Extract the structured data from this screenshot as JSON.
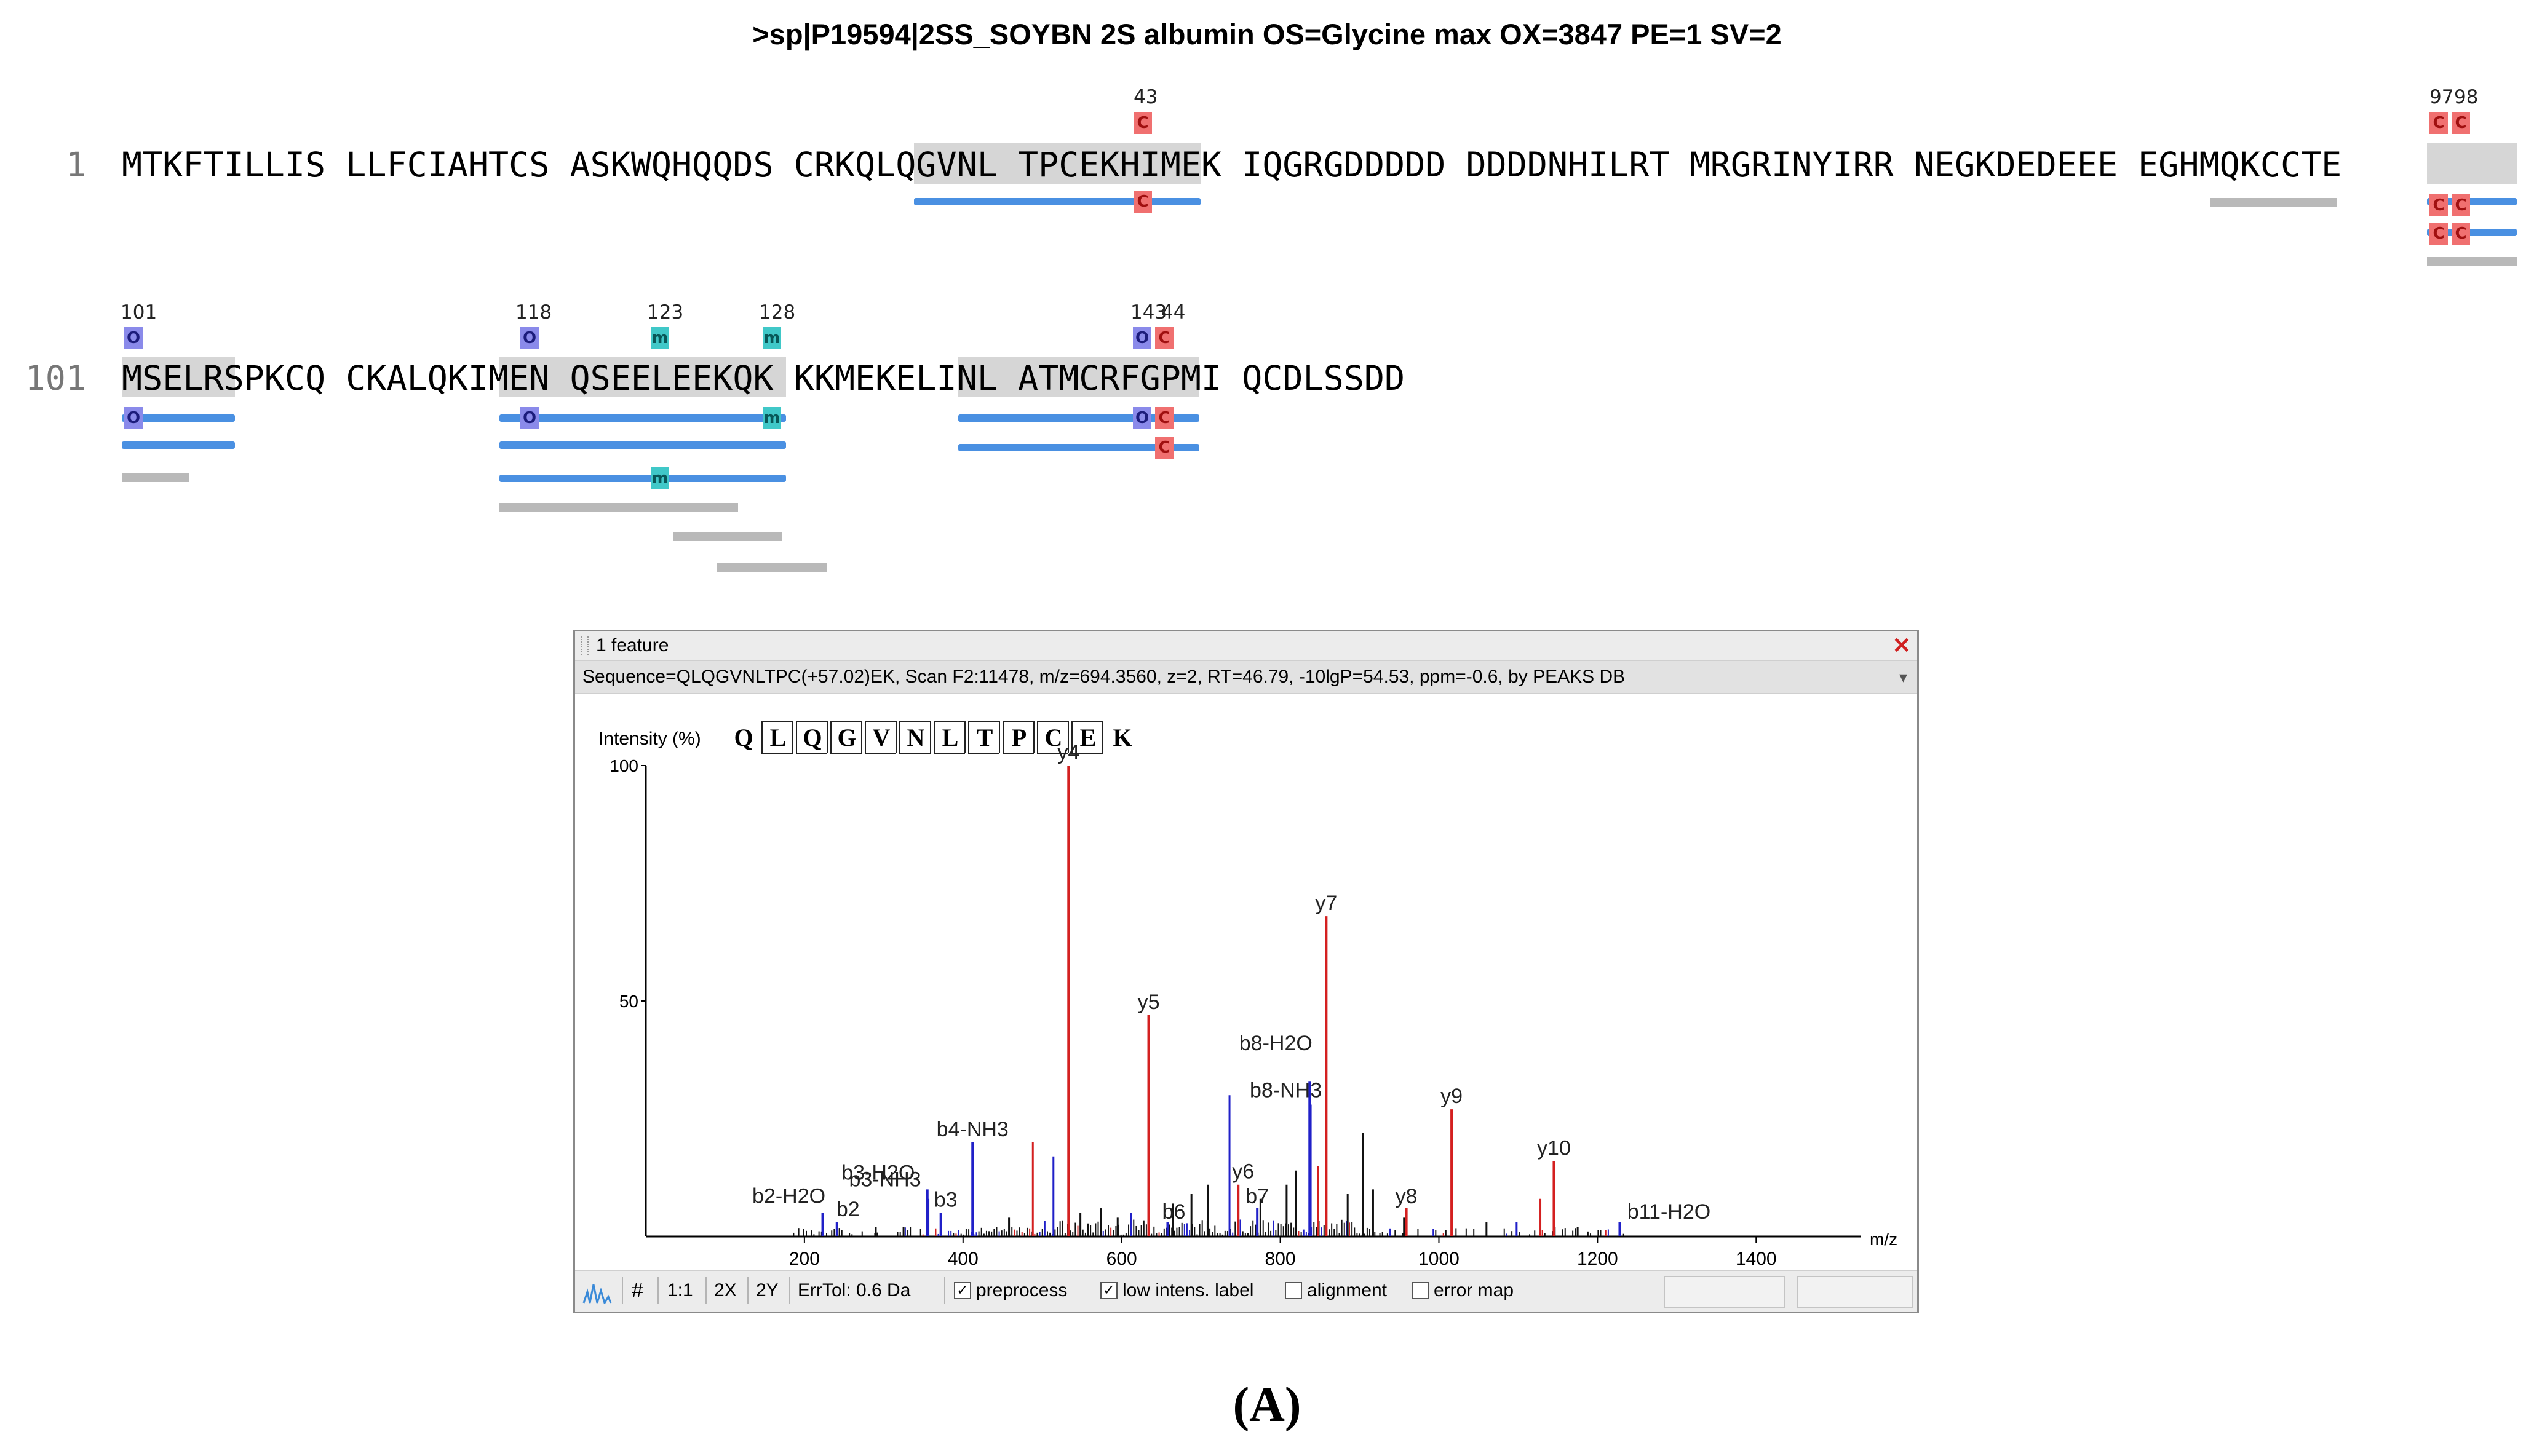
{
  "header": {
    "title": ">sp|P19594|2SS_SOYBN 2S albumin OS=Glycine max OX=3847 PE=1 SV=2"
  },
  "sequence": {
    "line1": {
      "num": "1",
      "text": "MTKFTILLIS LLFCIAHTCS ASKWQHQQDS CRKQLQGVNL TPCEKHIMEK IQGRGDDDDD DDDDNHILRT MRGRINYIRR NEGKDEDEEE EGHMQKCCTE"
    },
    "line2": {
      "num": "101",
      "text": "MSELRSPKCQ CKALQKIMEN QSEELEEKQK KKMEKELINL ATMCRFGPMI QCDLSSDD"
    },
    "positions": {
      "p43": "43",
      "p97": "97",
      "p98": "98",
      "p101": "101",
      "p118": "118",
      "p123": "123",
      "p128": "128",
      "p143": "143",
      "p144": "44"
    },
    "mod_letters": {
      "c": "C",
      "o": "O",
      "m": "m"
    }
  },
  "panel": {
    "title": "1 feature",
    "info": "Sequence=QLQGVNLTPC(+57.02)EK, Scan F2:11478, m/z=694.3560, z=2, RT=46.79, -10lgP=54.53, ppm=-0.6, by PEAKS DB",
    "ylabel": "Intensity (%)",
    "peptide": [
      "Q",
      "L",
      "Q",
      "G",
      "V",
      "N",
      "L",
      "T",
      "P",
      "C",
      "E",
      "K"
    ],
    "xunit": "m/z",
    "footer": {
      "onetoone": "1:1",
      "twox": "2X",
      "twoy": "2Y",
      "hash": "#",
      "errtol": "ErrTol: 0.6 Da",
      "preprocess": "preprocess",
      "lowintens": "low intens. label",
      "alignment": "alignment",
      "errormap": "error map"
    }
  },
  "chart_data": {
    "type": "bar",
    "title": "",
    "xlabel": "m/z",
    "ylabel": "Intensity (%)",
    "xlim": [
      0,
      1520
    ],
    "ylim": [
      0,
      100
    ],
    "xticks": [
      200,
      400,
      600,
      800,
      1000,
      1200,
      1400
    ],
    "yticks": [
      50,
      100
    ],
    "colors": {
      "y": "#d42020",
      "b": "#2020c8",
      "other": "#111111"
    },
    "labeled_peaks": [
      {
        "label": "y4",
        "mz": 533,
        "intensity": 100,
        "ion": "y"
      },
      {
        "label": "y7",
        "mz": 858,
        "intensity": 68,
        "ion": "y"
      },
      {
        "label": "y5",
        "mz": 634,
        "intensity": 47,
        "ion": "y"
      },
      {
        "label": "b8-H2O",
        "mz": 837,
        "intensity": 33,
        "ion": "b"
      },
      {
        "label": "b8-NH3",
        "mz": 838,
        "intensity": 28,
        "ion": "b"
      },
      {
        "label": "y9",
        "mz": 1016,
        "intensity": 27,
        "ion": "y"
      },
      {
        "label": "b4-NH3",
        "mz": 412,
        "intensity": 20,
        "ion": "b"
      },
      {
        "label": "y10",
        "mz": 1145,
        "intensity": 16,
        "ion": "y"
      },
      {
        "label": "b3-H2O",
        "mz": 355,
        "intensity": 10,
        "ion": "b"
      },
      {
        "label": "y6",
        "mz": 747,
        "intensity": 11,
        "ion": "y"
      },
      {
        "label": "b3-NH3",
        "mz": 356,
        "intensity": 8,
        "ion": "b"
      },
      {
        "label": "b7",
        "mz": 771,
        "intensity": 6,
        "ion": "b"
      },
      {
        "label": "y8",
        "mz": 959,
        "intensity": 6,
        "ion": "y"
      },
      {
        "label": "b2-H2O",
        "mz": 223,
        "intensity": 5,
        "ion": "b"
      },
      {
        "label": "b3",
        "mz": 372,
        "intensity": 5,
        "ion": "b"
      },
      {
        "label": "b2",
        "mz": 241,
        "intensity": 3,
        "ion": "b"
      },
      {
        "label": "b6",
        "mz": 658,
        "intensity": 3,
        "ion": "b"
      },
      {
        "label": "b11-H2O",
        "mz": 1228,
        "intensity": 3,
        "ion": "b"
      }
    ],
    "unlabeled_peaks": [
      {
        "mz": 736,
        "intensity": 30,
        "ion": "b"
      },
      {
        "mz": 488,
        "intensity": 20,
        "ion": "y"
      },
      {
        "mz": 514,
        "intensity": 17,
        "ion": "b"
      },
      {
        "mz": 904,
        "intensity": 22,
        "ion": "other"
      },
      {
        "mz": 848,
        "intensity": 15,
        "ion": "y"
      },
      {
        "mz": 820,
        "intensity": 14,
        "ion": "other"
      },
      {
        "mz": 808,
        "intensity": 11,
        "ion": "other"
      },
      {
        "mz": 885,
        "intensity": 9,
        "ion": "other"
      },
      {
        "mz": 917,
        "intensity": 10,
        "ion": "other"
      },
      {
        "mz": 1128,
        "intensity": 8,
        "ion": "y"
      },
      {
        "mz": 688,
        "intensity": 9,
        "ion": "other"
      },
      {
        "mz": 709,
        "intensity": 11,
        "ion": "other"
      },
      {
        "mz": 574,
        "intensity": 6,
        "ion": "other"
      },
      {
        "mz": 612,
        "intensity": 5,
        "ion": "b"
      },
      {
        "mz": 458,
        "intensity": 4,
        "ion": "other"
      },
      {
        "mz": 548,
        "intensity": 5,
        "ion": "other"
      },
      {
        "mz": 775,
        "intensity": 8,
        "ion": "other"
      },
      {
        "mz": 1098,
        "intensity": 3,
        "ion": "b"
      },
      {
        "mz": 1060,
        "intensity": 3,
        "ion": "other"
      },
      {
        "mz": 956,
        "intensity": 4,
        "ion": "other"
      },
      {
        "mz": 290,
        "intensity": 2,
        "ion": "other"
      },
      {
        "mz": 325,
        "intensity": 2,
        "ion": "other"
      },
      {
        "mz": 595,
        "intensity": 4,
        "ion": "other"
      },
      {
        "mz": 665,
        "intensity": 7,
        "ion": "other"
      },
      {
        "mz": 1175,
        "intensity": 2,
        "ion": "other"
      }
    ]
  },
  "caption": "(A)"
}
